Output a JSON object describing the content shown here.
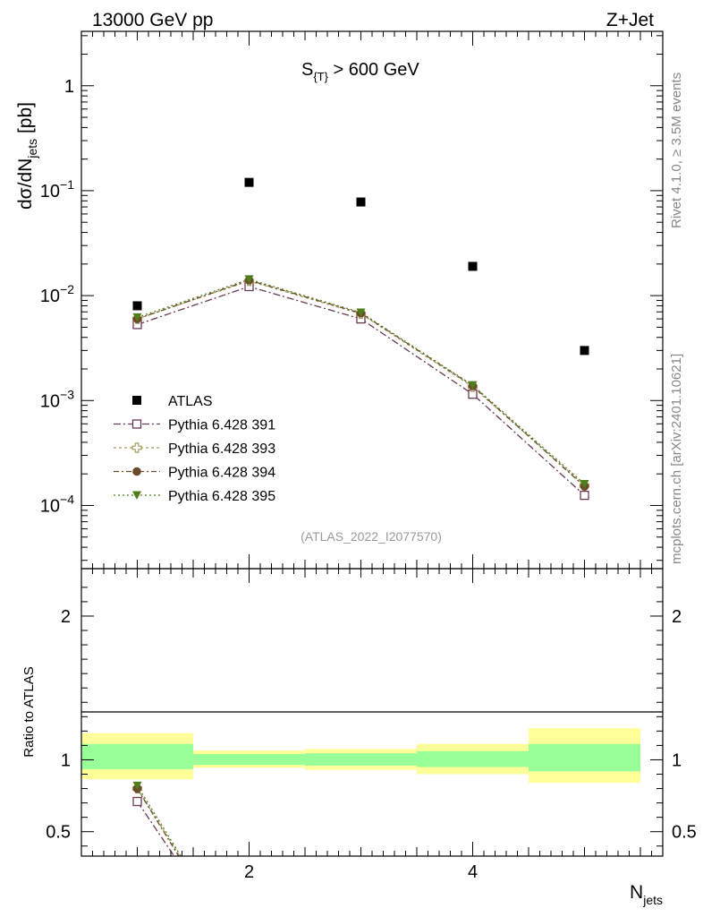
{
  "header": {
    "left": "13000 GeV pp",
    "right": "Z+Jet"
  },
  "side_labels": {
    "rivet": "Rivet 4.1.0, ≥ 3.5M events",
    "mcplots": "mcplots.cern.ch [arXiv:2401.10621]"
  },
  "colors": {
    "atlas": "#000000",
    "p391": "#6b3a55",
    "p393": "#a49a60",
    "p394": "#6b4a2a",
    "p395": "#4f7f1a",
    "band_inner": "#99ff99",
    "band_outer": "#ffff99"
  },
  "chart_data": [
    {
      "type": "scatter",
      "title": "S_{T} > 600 GeV",
      "title_main": "S",
      "title_sub": "{T}",
      "title_rest": " > 600 GeV",
      "ylabel_main": "dσ/dN",
      "ylabel_sub": "jets",
      "ylabel_unit": " [pb]",
      "yscale": "log",
      "ylim": [
        2.5e-05,
        3.3
      ],
      "xlim": [
        0.5,
        5.7
      ],
      "yticks": [
        {
          "value": 1,
          "base": "1",
          "exp": ""
        },
        {
          "value": 0.1,
          "base": "10",
          "exp": "−1"
        },
        {
          "value": 0.01,
          "base": "10",
          "exp": "−2"
        },
        {
          "value": 0.001,
          "base": "10",
          "exp": "−3"
        },
        {
          "value": 0.0001,
          "base": "10",
          "exp": "−4"
        }
      ],
      "watermark": "(ATLAS_2022_I2077570)",
      "x": [
        1,
        2,
        3,
        4,
        5
      ],
      "series": [
        {
          "name": "ATLAS",
          "key": "atlas",
          "marker": "square",
          "values": [
            0.008,
            0.12,
            0.078,
            0.019,
            0.003
          ]
        },
        {
          "name": "Pythia 6.428 391",
          "key": "p391",
          "marker": "open-square",
          "values": [
            0.0053,
            0.0122,
            0.006,
            0.00115,
            0.000125
          ]
        },
        {
          "name": "Pythia 6.428 393",
          "key": "p393",
          "marker": "open-cross",
          "values": [
            0.006,
            0.0138,
            0.0067,
            0.00135,
            0.000155
          ]
        },
        {
          "name": "Pythia 6.428 394",
          "key": "p394",
          "marker": "circle",
          "values": [
            0.006,
            0.014,
            0.0068,
            0.00138,
            0.000152
          ]
        },
        {
          "name": "Pythia 6.428 395",
          "key": "p395",
          "marker": "triangle-down",
          "values": [
            0.0062,
            0.0143,
            0.0069,
            0.0014,
            0.00016
          ]
        }
      ]
    },
    {
      "type": "line",
      "ylabel": "Ratio to ATLAS",
      "xlabel_main": "N",
      "xlabel_sub": "jets",
      "ylim": [
        0.33,
        2.33
      ],
      "xlim": [
        0.5,
        5.7
      ],
      "yticks": [
        "0.5",
        "1",
        "2"
      ],
      "xticks": [
        "2",
        "4"
      ],
      "bands": [
        {
          "xmin": 0.5,
          "xmax": 1.5,
          "inner": [
            0.935,
            1.11
          ],
          "outer": [
            0.865,
            1.185
          ]
        },
        {
          "xmin": 1.5,
          "xmax": 2.5,
          "inner": [
            0.965,
            1.04
          ],
          "outer": [
            0.945,
            1.065
          ]
        },
        {
          "xmin": 2.5,
          "xmax": 3.5,
          "inner": [
            0.96,
            1.045
          ],
          "outer": [
            0.93,
            1.075
          ]
        },
        {
          "xmin": 3.5,
          "xmax": 4.5,
          "inner": [
            0.95,
            1.06
          ],
          "outer": [
            0.9,
            1.11
          ]
        },
        {
          "xmin": 4.5,
          "xmax": 5.5,
          "inner": [
            0.92,
            1.11
          ],
          "outer": [
            0.84,
            1.22
          ]
        }
      ],
      "series": [
        {
          "name": "Pythia 6.428 391",
          "key": "p391",
          "marker": "open-square",
          "x": [
            1,
            1.33
          ],
          "values": [
            0.71,
            0.33
          ]
        },
        {
          "name": "Pythia 6.428 393",
          "key": "p393",
          "marker": "open-cross",
          "x": [
            1,
            1.38
          ],
          "values": [
            0.8,
            0.33
          ]
        },
        {
          "name": "Pythia 6.428 394",
          "key": "p394",
          "marker": "circle",
          "x": [
            1,
            1.37
          ],
          "values": [
            0.8,
            0.33
          ]
        },
        {
          "name": "Pythia 6.428 395",
          "key": "p395",
          "marker": "triangle-down",
          "x": [
            1,
            1.39
          ],
          "values": [
            0.82,
            0.33
          ]
        }
      ]
    }
  ]
}
